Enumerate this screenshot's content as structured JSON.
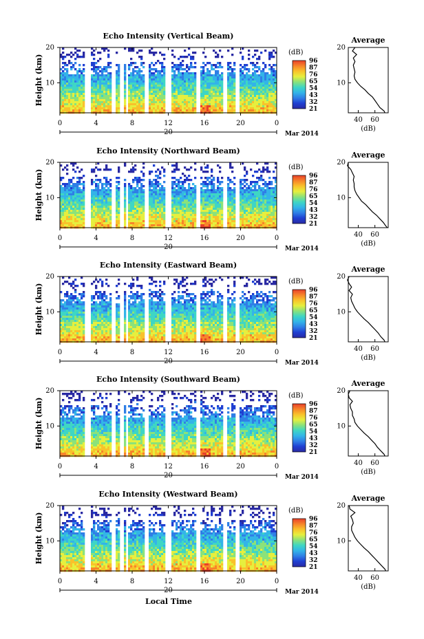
{
  "colors": {
    "colormap": [
      "#2a2aa3",
      "#1f3fd2",
      "#2f7fe6",
      "#33b4e8",
      "#3ed6c4",
      "#8be27a",
      "#e6ef3e",
      "#f9c22b",
      "#f7842a",
      "#e8402a"
    ]
  },
  "x_axis_label": "Local Time",
  "colorbar_unit": "(dB)",
  "colorbar_ticks": [
    "96",
    "87",
    "76",
    "65",
    "54",
    "43",
    "32",
    "21"
  ],
  "date_parts": {
    "day": "20",
    "month_year": "Mar 2014"
  },
  "chart_data": [
    {
      "type": "heatmap",
      "title": "Echo Intensity (Vertical Beam)",
      "ylabel": "Height (km)",
      "xlabel": "Local Time",
      "x_ticks": [
        "0",
        "4",
        "8",
        "12",
        "16",
        "20",
        "0"
      ],
      "x_range": [
        0,
        24
      ],
      "y_ticks": [
        "20",
        "10"
      ],
      "y_range": [
        1.5,
        20
      ],
      "colorbar": {
        "label": "(dB)",
        "ticks": [
          96,
          87,
          76,
          65,
          54,
          43,
          32,
          21
        ]
      },
      "data_gaps_hours": [
        [
          2.6,
          3.3
        ],
        [
          5.5,
          6.1
        ],
        [
          6.6,
          7.0
        ],
        [
          7.2,
          7.5
        ],
        [
          9.3,
          9.7
        ],
        [
          11.6,
          12.2
        ],
        [
          14.9,
          15.4
        ],
        [
          18.0,
          18.5
        ],
        [
          19.4,
          19.8
        ]
      ],
      "average_profile": {
        "title": "Average",
        "xlabel": "(dB)",
        "x_ticks": [
          40,
          60
        ],
        "y_ticks": [
          10,
          20
        ],
        "height_km": [
          1.5,
          2,
          3,
          4,
          5,
          6,
          7,
          8,
          9,
          10,
          11,
          12,
          13,
          14,
          15,
          16,
          17,
          18,
          19,
          20
        ],
        "db": [
          72,
          71,
          66,
          63,
          60,
          57,
          52,
          48,
          43,
          39,
          36,
          35,
          36,
          35,
          34,
          36,
          34,
          38,
          33,
          36
        ]
      }
    },
    {
      "type": "heatmap",
      "title": "Echo Intensity (Northward Beam)",
      "ylabel": "Height (km)",
      "xlabel": "Local Time",
      "x_ticks": [
        "0",
        "4",
        "8",
        "12",
        "16",
        "20",
        "0"
      ],
      "x_range": [
        0,
        24
      ],
      "y_ticks": [
        "20",
        "10"
      ],
      "y_range": [
        1.5,
        20
      ],
      "colorbar": {
        "label": "(dB)",
        "ticks": [
          96,
          87,
          76,
          65,
          54,
          43,
          32,
          21
        ]
      },
      "data_gaps_hours": [
        [
          2.6,
          3.3
        ],
        [
          5.5,
          6.1
        ],
        [
          6.6,
          7.0
        ],
        [
          7.2,
          7.5
        ],
        [
          9.3,
          9.7
        ],
        [
          11.6,
          12.2
        ],
        [
          14.9,
          15.4
        ],
        [
          18.0,
          18.5
        ],
        [
          19.4,
          19.8
        ]
      ],
      "average_profile": {
        "title": "Average",
        "xlabel": "(dB)",
        "x_ticks": [
          40,
          60
        ],
        "y_ticks": [
          10,
          20
        ],
        "height_km": [
          1.5,
          2,
          3,
          4,
          5,
          6,
          7,
          8,
          9,
          10,
          11,
          12,
          13,
          14,
          15,
          16,
          17,
          18,
          19,
          20
        ],
        "db": [
          75,
          73,
          70,
          66,
          62,
          57,
          53,
          49,
          44,
          41,
          38,
          36,
          35,
          35,
          34,
          35,
          33,
          31,
          27,
          28
        ]
      }
    },
    {
      "type": "heatmap",
      "title": "Echo Intensity (Eastward Beam)",
      "ylabel": "Height (km)",
      "xlabel": "Local Time",
      "x_ticks": [
        "0",
        "4",
        "8",
        "12",
        "16",
        "20",
        "0"
      ],
      "x_range": [
        0,
        24
      ],
      "y_ticks": [
        "20",
        "10"
      ],
      "y_range": [
        1.5,
        20
      ],
      "colorbar": {
        "label": "(dB)",
        "ticks": [
          96,
          87,
          76,
          65,
          54,
          43,
          32,
          21
        ]
      },
      "data_gaps_hours": [
        [
          2.6,
          3.3
        ],
        [
          5.5,
          6.1
        ],
        [
          6.6,
          7.0
        ],
        [
          7.2,
          7.5
        ],
        [
          9.3,
          9.7
        ],
        [
          11.6,
          12.2
        ],
        [
          14.9,
          15.4
        ],
        [
          18.0,
          18.5
        ],
        [
          19.4,
          19.8
        ]
      ],
      "average_profile": {
        "title": "Average",
        "xlabel": "(dB)",
        "x_ticks": [
          40,
          60
        ],
        "y_ticks": [
          10,
          20
        ],
        "height_km": [
          1.5,
          2,
          3,
          4,
          5,
          6,
          7,
          8,
          9,
          10,
          11,
          12,
          13,
          14,
          15,
          16,
          17,
          18,
          19,
          20
        ],
        "db": [
          72,
          71,
          67,
          64,
          60,
          56,
          52,
          47,
          43,
          39,
          36,
          34,
          32,
          31,
          33,
          29,
          32,
          29,
          27,
          29
        ]
      }
    },
    {
      "type": "heatmap",
      "title": "Echo Intensity (Southward Beam)",
      "ylabel": "Height (km)",
      "xlabel": "Local Time",
      "x_ticks": [
        "0",
        "4",
        "8",
        "12",
        "16",
        "20",
        "0"
      ],
      "x_range": [
        0,
        24
      ],
      "y_ticks": [
        "20",
        "10"
      ],
      "y_range": [
        1.5,
        20
      ],
      "colorbar": {
        "label": "(dB)",
        "ticks": [
          96,
          87,
          76,
          65,
          54,
          43,
          32,
          21
        ]
      },
      "data_gaps_hours": [
        [
          2.6,
          3.3
        ],
        [
          5.5,
          6.1
        ],
        [
          6.6,
          7.0
        ],
        [
          7.2,
          7.5
        ],
        [
          9.3,
          9.7
        ],
        [
          11.6,
          12.2
        ],
        [
          14.9,
          15.4
        ],
        [
          18.0,
          18.5
        ],
        [
          19.4,
          19.8
        ]
      ],
      "average_profile": {
        "title": "Average",
        "xlabel": "(dB)",
        "x_ticks": [
          40,
          60
        ],
        "y_ticks": [
          10,
          20
        ],
        "height_km": [
          1.5,
          2,
          3,
          4,
          5,
          6,
          7,
          8,
          9,
          10,
          11,
          12,
          13,
          14,
          15,
          16,
          17,
          18,
          19,
          20
        ],
        "db": [
          72,
          71,
          67,
          63,
          60,
          56,
          52,
          47,
          43,
          39,
          36,
          35,
          33,
          33,
          31,
          30,
          33,
          29,
          28,
          30
        ]
      }
    },
    {
      "type": "heatmap",
      "title": "Echo Intensity (Westward Beam)",
      "ylabel": "Height (km)",
      "xlabel": "Local Time",
      "x_ticks": [
        "0",
        "4",
        "8",
        "12",
        "16",
        "20",
        "0"
      ],
      "x_range": [
        0,
        24
      ],
      "y_ticks": [
        "20",
        "10"
      ],
      "y_range": [
        1.5,
        20
      ],
      "colorbar": {
        "label": "(dB)",
        "ticks": [
          96,
          87,
          76,
          65,
          54,
          43,
          32,
          21
        ]
      },
      "data_gaps_hours": [
        [
          2.6,
          3.3
        ],
        [
          5.5,
          6.1
        ],
        [
          6.6,
          7.0
        ],
        [
          7.2,
          7.5
        ],
        [
          9.3,
          9.7
        ],
        [
          11.6,
          12.2
        ],
        [
          14.9,
          15.4
        ],
        [
          18.0,
          18.5
        ],
        [
          19.4,
          19.8
        ]
      ],
      "average_profile": {
        "title": "Average",
        "xlabel": "(dB)",
        "x_ticks": [
          40,
          60
        ],
        "y_ticks": [
          10,
          20
        ],
        "height_km": [
          1.5,
          2,
          3,
          4,
          5,
          6,
          7,
          8,
          9,
          10,
          11,
          12,
          13,
          14,
          15,
          16,
          17,
          18,
          19,
          20
        ],
        "db": [
          73,
          72,
          68,
          64,
          60,
          56,
          52,
          47,
          43,
          39,
          36,
          34,
          32,
          32,
          34,
          33,
          31,
          36,
          30,
          29
        ]
      }
    }
  ]
}
